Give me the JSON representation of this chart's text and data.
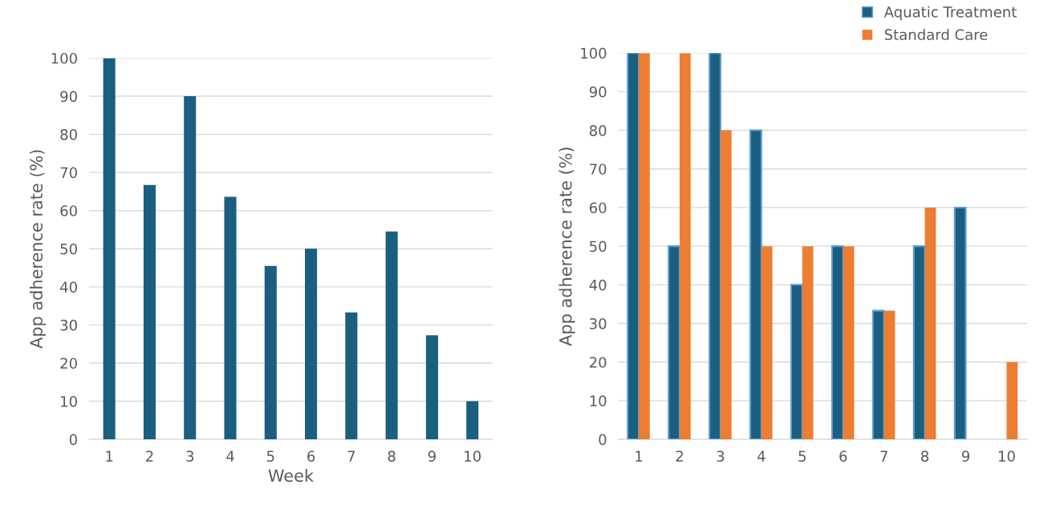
{
  "chart_data": [
    {
      "type": "bar",
      "xlabel": "Week",
      "ylabel": "App adherence rate (%)",
      "categories": [
        "1",
        "2",
        "3",
        "4",
        "5",
        "6",
        "7",
        "8",
        "9",
        "10"
      ],
      "series": [
        {
          "color": "#1a5f7f",
          "values": [
            100,
            66.7,
            90,
            63.6,
            45.5,
            50,
            33.3,
            54.5,
            27.3,
            10
          ]
        }
      ],
      "ylim": [
        0,
        100
      ],
      "yticks": [
        0,
        10,
        20,
        30,
        40,
        50,
        60,
        70,
        80,
        90,
        100
      ],
      "grid": "y",
      "legend": false
    },
    {
      "type": "bar",
      "ylabel": "App adherence rate (%)",
      "categories": [
        "1",
        "2",
        "3",
        "4",
        "5",
        "6",
        "7",
        "8",
        "9",
        "10"
      ],
      "series": [
        {
          "name": "Aquatic Treatment",
          "color": "#1a5f7f",
          "values": [
            100,
            50,
            100,
            80,
            40,
            50,
            33.3,
            50,
            60,
            null
          ]
        },
        {
          "name": "Standard Care",
          "color": "#ed7d31",
          "values": [
            100,
            100,
            80,
            50,
            50,
            50,
            33.3,
            60,
            null,
            20
          ]
        }
      ],
      "ylim": [
        0,
        100
      ],
      "yticks": [
        0,
        10,
        20,
        30,
        40,
        50,
        60,
        70,
        80,
        90,
        100
      ],
      "grid": "y",
      "legend": "top right"
    }
  ]
}
